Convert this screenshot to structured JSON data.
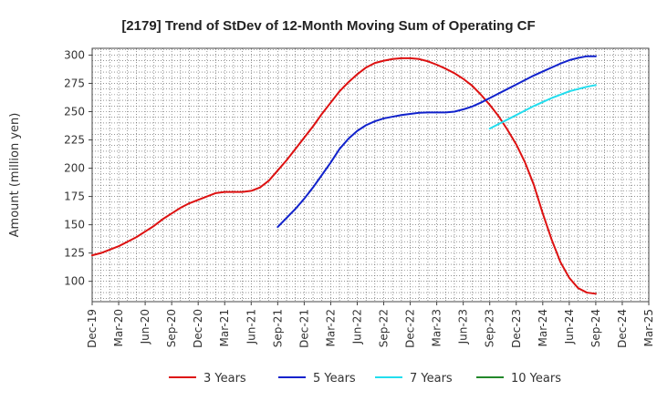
{
  "chart_data": {
    "type": "line",
    "title": "[2179]  Trend of StDev of 12-Month Moving Sum of Operating CF",
    "xlabel": "",
    "ylabel": "Amount (million yen)",
    "ylim": [
      82,
      306
    ],
    "yticks": [
      100,
      125,
      150,
      175,
      200,
      225,
      250,
      275,
      300
    ],
    "x_categories": [
      "Dec-19",
      "Mar-20",
      "Jun-20",
      "Sep-20",
      "Dec-20",
      "Mar-21",
      "Jun-21",
      "Sep-21",
      "Dec-21",
      "Mar-22",
      "Jun-22",
      "Sep-22",
      "Dec-22",
      "Mar-23",
      "Jun-23",
      "Sep-23",
      "Dec-23",
      "Mar-24",
      "Jun-24",
      "Sep-24",
      "Dec-24",
      "Mar-25"
    ],
    "grid": true,
    "legend_position": "bottom",
    "series": [
      {
        "name": "3 Years",
        "color": "#dd1111",
        "points": [
          [
            0,
            123
          ],
          [
            0.333,
            125
          ],
          [
            0.667,
            128
          ],
          [
            1,
            131
          ],
          [
            1.333,
            135
          ],
          [
            1.667,
            139
          ],
          [
            2,
            144
          ],
          [
            2.333,
            149
          ],
          [
            2.667,
            155
          ],
          [
            3,
            160
          ],
          [
            3.333,
            165
          ],
          [
            3.667,
            169
          ],
          [
            4,
            172
          ],
          [
            4.333,
            175
          ],
          [
            4.667,
            178
          ],
          [
            5,
            179
          ],
          [
            5.333,
            179
          ],
          [
            5.667,
            179
          ],
          [
            6,
            180
          ],
          [
            6.333,
            183
          ],
          [
            6.667,
            189
          ],
          [
            7,
            198
          ],
          [
            7.333,
            207
          ],
          [
            7.667,
            217
          ],
          [
            8,
            227
          ],
          [
            8.333,
            237
          ],
          [
            8.667,
            248
          ],
          [
            9,
            258
          ],
          [
            9.333,
            268
          ],
          [
            9.667,
            276
          ],
          [
            10,
            283
          ],
          [
            10.333,
            289
          ],
          [
            10.667,
            293
          ],
          [
            11,
            295
          ],
          [
            11.333,
            296.5
          ],
          [
            11.667,
            297.2
          ],
          [
            12,
            297.2
          ],
          [
            12.333,
            296.5
          ],
          [
            12.667,
            294.5
          ],
          [
            13,
            291.5
          ],
          [
            13.333,
            288
          ],
          [
            13.667,
            284
          ],
          [
            14,
            279
          ],
          [
            14.333,
            273
          ],
          [
            14.667,
            265
          ],
          [
            15,
            256
          ],
          [
            15.333,
            246
          ],
          [
            15.667,
            234
          ],
          [
            16,
            221
          ],
          [
            16.333,
            205
          ],
          [
            16.667,
            185
          ],
          [
            17,
            160
          ],
          [
            17.333,
            137
          ],
          [
            17.667,
            117
          ],
          [
            18,
            103
          ],
          [
            18.333,
            94
          ],
          [
            18.667,
            90
          ],
          [
            19,
            89
          ]
        ]
      },
      {
        "name": "5 Years",
        "color": "#1122cc",
        "points": [
          [
            7,
            148
          ],
          [
            7.333,
            156
          ],
          [
            7.667,
            164
          ],
          [
            8,
            173
          ],
          [
            8.333,
            183
          ],
          [
            8.667,
            194
          ],
          [
            9,
            205
          ],
          [
            9.333,
            217
          ],
          [
            9.667,
            226
          ],
          [
            10,
            233
          ],
          [
            10.333,
            238
          ],
          [
            10.667,
            241.5
          ],
          [
            11,
            244
          ],
          [
            11.333,
            245.5
          ],
          [
            11.667,
            247
          ],
          [
            12,
            248
          ],
          [
            12.333,
            249
          ],
          [
            12.667,
            249.3
          ],
          [
            13,
            249.3
          ],
          [
            13.333,
            249.3
          ],
          [
            13.667,
            250
          ],
          [
            14,
            252
          ],
          [
            14.333,
            254.5
          ],
          [
            14.667,
            258
          ],
          [
            15,
            262
          ],
          [
            15.333,
            266
          ],
          [
            15.667,
            270
          ],
          [
            16,
            274
          ],
          [
            16.333,
            278
          ],
          [
            16.667,
            282
          ],
          [
            17,
            285.5
          ],
          [
            17.333,
            289
          ],
          [
            17.667,
            292.5
          ],
          [
            18,
            295.5
          ],
          [
            18.333,
            297.5
          ],
          [
            18.667,
            299
          ],
          [
            19,
            299
          ]
        ]
      },
      {
        "name": "7 Years",
        "color": "#22ddee",
        "points": [
          [
            15,
            235
          ],
          [
            15.333,
            239
          ],
          [
            15.667,
            243
          ],
          [
            16,
            247
          ],
          [
            16.333,
            251
          ],
          [
            16.667,
            255
          ],
          [
            17,
            258.5
          ],
          [
            17.333,
            262
          ],
          [
            17.667,
            265
          ],
          [
            18,
            268
          ],
          [
            18.333,
            270
          ],
          [
            18.667,
            272
          ],
          [
            19,
            273.5
          ]
        ]
      },
      {
        "name": "10 Years",
        "color": "#22882a",
        "points": []
      }
    ]
  }
}
